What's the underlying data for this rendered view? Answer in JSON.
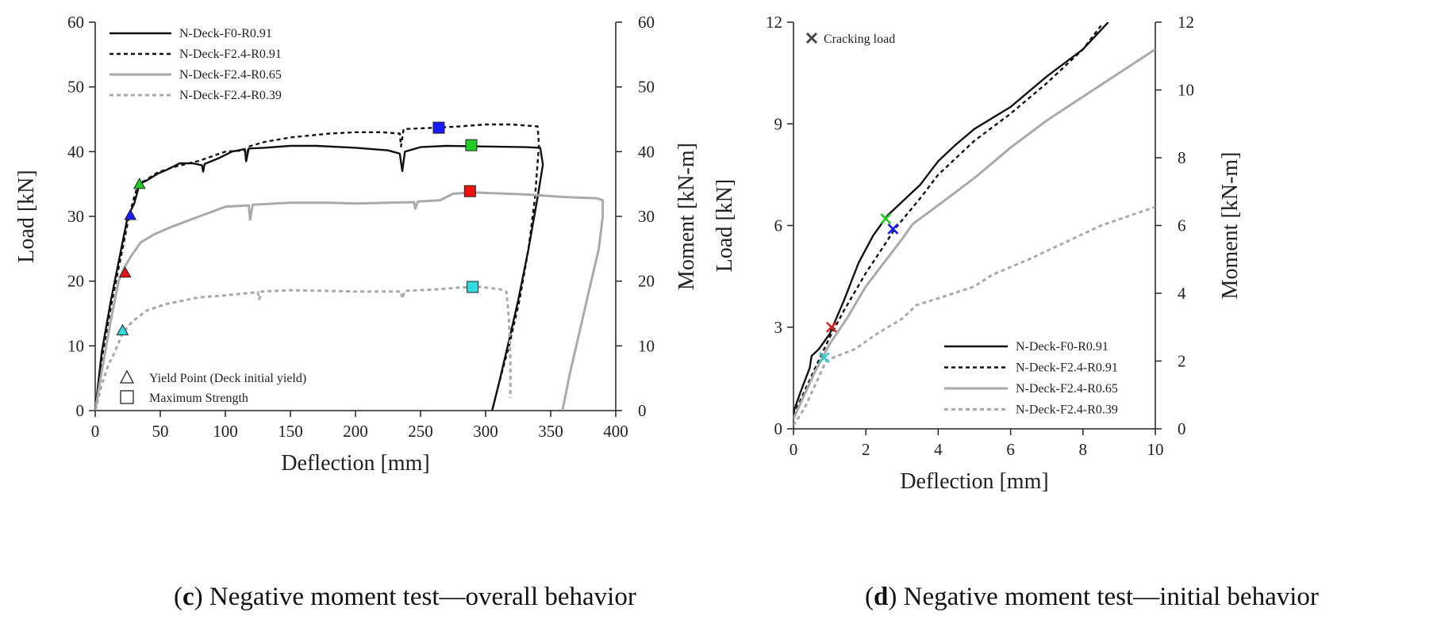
{
  "figure": {
    "caption_c_letter": "c",
    "caption_c_text": "Negative moment test—overall behavior",
    "caption_d_letter": "d",
    "caption_d_text": "Negative moment test—initial behavior"
  },
  "chart_data": [
    {
      "id": "c",
      "type": "line",
      "title": "",
      "xlabel": "Deflection [mm]",
      "ylabel": "Load [kN]",
      "y2label": "Moment [kN-m]",
      "xlim": [
        0,
        400
      ],
      "ylim": [
        0,
        60
      ],
      "y2lim": [
        0,
        60
      ],
      "xticks": [
        "0",
        "50",
        "100",
        "150",
        "200",
        "250",
        "300",
        "350",
        "400"
      ],
      "yticks": [
        "0",
        "10",
        "20",
        "30",
        "40",
        "50",
        "60"
      ],
      "y2ticks": [
        "0",
        "10",
        "20",
        "30",
        "40",
        "50",
        "60"
      ],
      "grid": false,
      "legend_position": "top-left",
      "series": [
        {
          "name": "N-Deck-F0-R0.91",
          "style": "solid",
          "color": "#111111",
          "points": [
            [
              0,
              0
            ],
            [
              5,
              9
            ],
            [
              12,
              17
            ],
            [
              20,
              25
            ],
            [
              25,
              30
            ],
            [
              30,
              32
            ],
            [
              34,
              35
            ],
            [
              40,
              35.6
            ],
            [
              48,
              36.6
            ],
            [
              55,
              37.2
            ],
            [
              65,
              38.2
            ],
            [
              75,
              38.2
            ],
            [
              82,
              37.9
            ],
            [
              83,
              36.9
            ],
            [
              84,
              38.1
            ],
            [
              95,
              39
            ],
            [
              105,
              40
            ],
            [
              115,
              40.4
            ],
            [
              116,
              38.5
            ],
            [
              118,
              40.5
            ],
            [
              130,
              40.6
            ],
            [
              150,
              40.9
            ],
            [
              170,
              40.9
            ],
            [
              200,
              40.6
            ],
            [
              225,
              40.2
            ],
            [
              234,
              39.7
            ],
            [
              236,
              37
            ],
            [
              238,
              40
            ],
            [
              250,
              40.7
            ],
            [
              270,
              40.9
            ],
            [
              300,
              40.8
            ],
            [
              330,
              40.7
            ],
            [
              342,
              40.6
            ],
            [
              344,
              38
            ],
            [
              340,
              33
            ],
            [
              333,
              25
            ],
            [
              325,
              17
            ],
            [
              317,
              10
            ],
            [
              310,
              4
            ],
            [
              305,
              0
            ]
          ]
        },
        {
          "name": "N-Deck-F2.4-R0.91",
          "style": "dashed",
          "color": "#111111",
          "points": [
            [
              0,
              0
            ],
            [
              5,
              8
            ],
            [
              12,
              16
            ],
            [
              20,
              24
            ],
            [
              26,
              30
            ],
            [
              30,
              33
            ],
            [
              33,
              35
            ],
            [
              38,
              35.5
            ],
            [
              48,
              36.8
            ],
            [
              60,
              37.6
            ],
            [
              80,
              38.6
            ],
            [
              100,
              40
            ],
            [
              115,
              40.2
            ],
            [
              116,
              39
            ],
            [
              118,
              40.8
            ],
            [
              130,
              41.5
            ],
            [
              150,
              42.2
            ],
            [
              180,
              42.8
            ],
            [
              200,
              43
            ],
            [
              220,
              43
            ],
            [
              234,
              42.8
            ],
            [
              235,
              40.8
            ],
            [
              237,
              43.5
            ],
            [
              250,
              43.6
            ],
            [
              262,
              43.7
            ],
            [
              280,
              43.9
            ],
            [
              300,
              44.2
            ],
            [
              320,
              44.2
            ],
            [
              340,
              43.9
            ],
            [
              341,
              41
            ],
            [
              338,
              33
            ],
            [
              333,
              25
            ],
            [
              326,
              17
            ],
            [
              318,
              10
            ],
            [
              310,
              4
            ],
            [
              305,
              0
            ]
          ]
        },
        {
          "name": "N-Deck-F2.4-R0.65",
          "style": "solid",
          "color": "#aaaaaa",
          "points": [
            [
              0,
              0
            ],
            [
              5,
              6
            ],
            [
              12,
              14
            ],
            [
              18,
              20
            ],
            [
              22,
              22
            ],
            [
              28,
              24
            ],
            [
              35,
              26
            ],
            [
              45,
              27.2
            ],
            [
              60,
              28.5
            ],
            [
              80,
              30
            ],
            [
              100,
              31.5
            ],
            [
              118,
              31.7
            ],
            [
              119,
              29.5
            ],
            [
              121,
              31.8
            ],
            [
              150,
              32.1
            ],
            [
              180,
              32.1
            ],
            [
              200,
              32
            ],
            [
              245,
              32.2
            ],
            [
              246,
              31.2
            ],
            [
              248,
              32.3
            ],
            [
              265,
              32.5
            ],
            [
              275,
              33.5
            ],
            [
              290,
              33.7
            ],
            [
              330,
              33.4
            ],
            [
              360,
              33
            ],
            [
              385,
              32.8
            ],
            [
              390,
              32.5
            ],
            [
              390,
              30
            ],
            [
              387,
              25
            ],
            [
              380,
              19
            ],
            [
              372,
              12
            ],
            [
              365,
              6
            ],
            [
              359,
              0
            ]
          ]
        },
        {
          "name": "N-Deck-F2.4-R0.39",
          "style": "dashed",
          "color": "#aaaaaa",
          "points": [
            [
              0,
              0
            ],
            [
              5,
              4
            ],
            [
              10,
              7
            ],
            [
              15,
              9
            ],
            [
              20,
              11.5
            ],
            [
              25,
              13
            ],
            [
              30,
              14
            ],
            [
              40,
              15.5
            ],
            [
              55,
              16.5
            ],
            [
              80,
              17.5
            ],
            [
              100,
              17.8
            ],
            [
              125,
              18.3
            ],
            [
              126,
              17.2
            ],
            [
              128,
              18.4
            ],
            [
              150,
              18.6
            ],
            [
              200,
              18.4
            ],
            [
              235,
              18.4
            ],
            [
              236,
              17.3
            ],
            [
              238,
              18.5
            ],
            [
              260,
              18.7
            ],
            [
              280,
              19
            ],
            [
              295,
              19.1
            ],
            [
              310,
              18.8
            ],
            [
              316,
              18.4
            ],
            [
              318,
              14
            ],
            [
              319,
              8
            ],
            [
              319,
              2
            ]
          ]
        }
      ],
      "markers": [
        {
          "shape": "triangle",
          "x": 34,
          "y": 35,
          "color": "#22cc22"
        },
        {
          "shape": "triangle",
          "x": 27,
          "y": 30.2,
          "color": "#1a1aff"
        },
        {
          "shape": "triangle",
          "x": 23,
          "y": 21.3,
          "color": "#ee1111"
        },
        {
          "shape": "triangle",
          "x": 21,
          "y": 12.4,
          "color": "#33dddd"
        },
        {
          "shape": "square",
          "x": 264,
          "y": 43.7,
          "color": "#1a1aff"
        },
        {
          "shape": "square",
          "x": 289,
          "y": 41,
          "color": "#22cc22"
        },
        {
          "shape": "square",
          "x": 288,
          "y": 33.9,
          "color": "#ee1111"
        },
        {
          "shape": "square",
          "x": 290,
          "y": 19.1,
          "color": "#33dddd"
        }
      ],
      "annotations": {
        "yield_label": "Yield Point (Deck initial yield)",
        "max_label": "Maximum Strength"
      }
    },
    {
      "id": "d",
      "type": "line",
      "title": "",
      "xlabel": "Deflection [mm]",
      "ylabel": "Load [kN]",
      "y2label": "Moment [kN-m]",
      "xlim": [
        0,
        10
      ],
      "ylim": [
        0,
        12
      ],
      "y2lim": [
        0,
        12
      ],
      "xticks": [
        "0",
        "2",
        "4",
        "6",
        "8",
        "10"
      ],
      "yticks": [
        "0",
        "3",
        "6",
        "9",
        "12"
      ],
      "y2ticks": [
        "0",
        "2",
        "4",
        "6",
        "8",
        "10",
        "12"
      ],
      "grid": false,
      "legend_position": "bottom-right",
      "series": [
        {
          "name": "N-Deck-F0-R0.91",
          "style": "solid",
          "color": "#111111",
          "points": [
            [
              0,
              0.5
            ],
            [
              0.2,
              1.1
            ],
            [
              0.45,
              1.8
            ],
            [
              0.5,
              2.15
            ],
            [
              0.7,
              2.35
            ],
            [
              1.0,
              2.8
            ],
            [
              1.4,
              3.8
            ],
            [
              1.8,
              4.9
            ],
            [
              2.2,
              5.7
            ],
            [
              2.6,
              6.3
            ],
            [
              3.0,
              6.7
            ],
            [
              3.5,
              7.2
            ],
            [
              4.0,
              7.9
            ],
            [
              4.5,
              8.4
            ],
            [
              5.0,
              8.85
            ],
            [
              6.0,
              9.5
            ],
            [
              7.0,
              10.4
            ],
            [
              8.0,
              11.2
            ],
            [
              8.7,
              12
            ]
          ]
        },
        {
          "name": "N-Deck-F2.4-R0.91",
          "style": "dashed",
          "color": "#111111",
          "points": [
            [
              0,
              0.4
            ],
            [
              0.3,
              1.1
            ],
            [
              0.6,
              1.8
            ],
            [
              1.0,
              2.7
            ],
            [
              1.4,
              3.5
            ],
            [
              2.0,
              4.6
            ],
            [
              2.5,
              5.4
            ],
            [
              2.8,
              5.9
            ],
            [
              3.5,
              6.8
            ],
            [
              4.0,
              7.5
            ],
            [
              5.0,
              8.5
            ],
            [
              6.0,
              9.3
            ],
            [
              7.0,
              10.2
            ],
            [
              8.0,
              11.2
            ],
            [
              8.5,
              11.9
            ]
          ]
        },
        {
          "name": "N-Deck-F2.4-R0.65",
          "style": "solid",
          "color": "#aaaaaa",
          "points": [
            [
              0,
              0.3
            ],
            [
              0.3,
              1.0
            ],
            [
              0.6,
              1.7
            ],
            [
              1.0,
              2.5
            ],
            [
              1.5,
              3.3
            ],
            [
              2.0,
              4.2
            ],
            [
              2.5,
              4.9
            ],
            [
              3.0,
              5.6
            ],
            [
              3.3,
              6.05
            ],
            [
              4.0,
              6.6
            ],
            [
              5.0,
              7.4
            ],
            [
              6.0,
              8.3
            ],
            [
              7.0,
              9.1
            ],
            [
              8.0,
              9.8
            ],
            [
              9.0,
              10.5
            ],
            [
              10,
              11.2
            ]
          ]
        },
        {
          "name": "N-Deck-F2.4-R0.39",
          "style": "dashed",
          "color": "#aaaaaa",
          "points": [
            [
              0,
              0.1
            ],
            [
              0.3,
              0.6
            ],
            [
              0.6,
              1.3
            ],
            [
              0.9,
              2.0
            ],
            [
              1.2,
              2.15
            ],
            [
              1.7,
              2.35
            ],
            [
              2.3,
              2.8
            ],
            [
              3.0,
              3.25
            ],
            [
              3.4,
              3.65
            ],
            [
              4.0,
              3.85
            ],
            [
              5.0,
              4.2
            ],
            [
              5.5,
              4.55
            ],
            [
              6.5,
              5.0
            ],
            [
              7.5,
              5.5
            ],
            [
              8.5,
              6.0
            ],
            [
              10,
              6.55
            ]
          ]
        }
      ],
      "markers": [
        {
          "shape": "x",
          "x": 2.55,
          "y": 6.2,
          "color": "#22cc22"
        },
        {
          "shape": "x",
          "x": 2.75,
          "y": 5.9,
          "color": "#1a1aff"
        },
        {
          "shape": "x",
          "x": 1.05,
          "y": 3.0,
          "color": "#dd2222"
        },
        {
          "shape": "x",
          "x": 0.85,
          "y": 2.1,
          "color": "#33cccc"
        }
      ],
      "annotations": {
        "cracking_label": "Cracking load"
      }
    }
  ]
}
